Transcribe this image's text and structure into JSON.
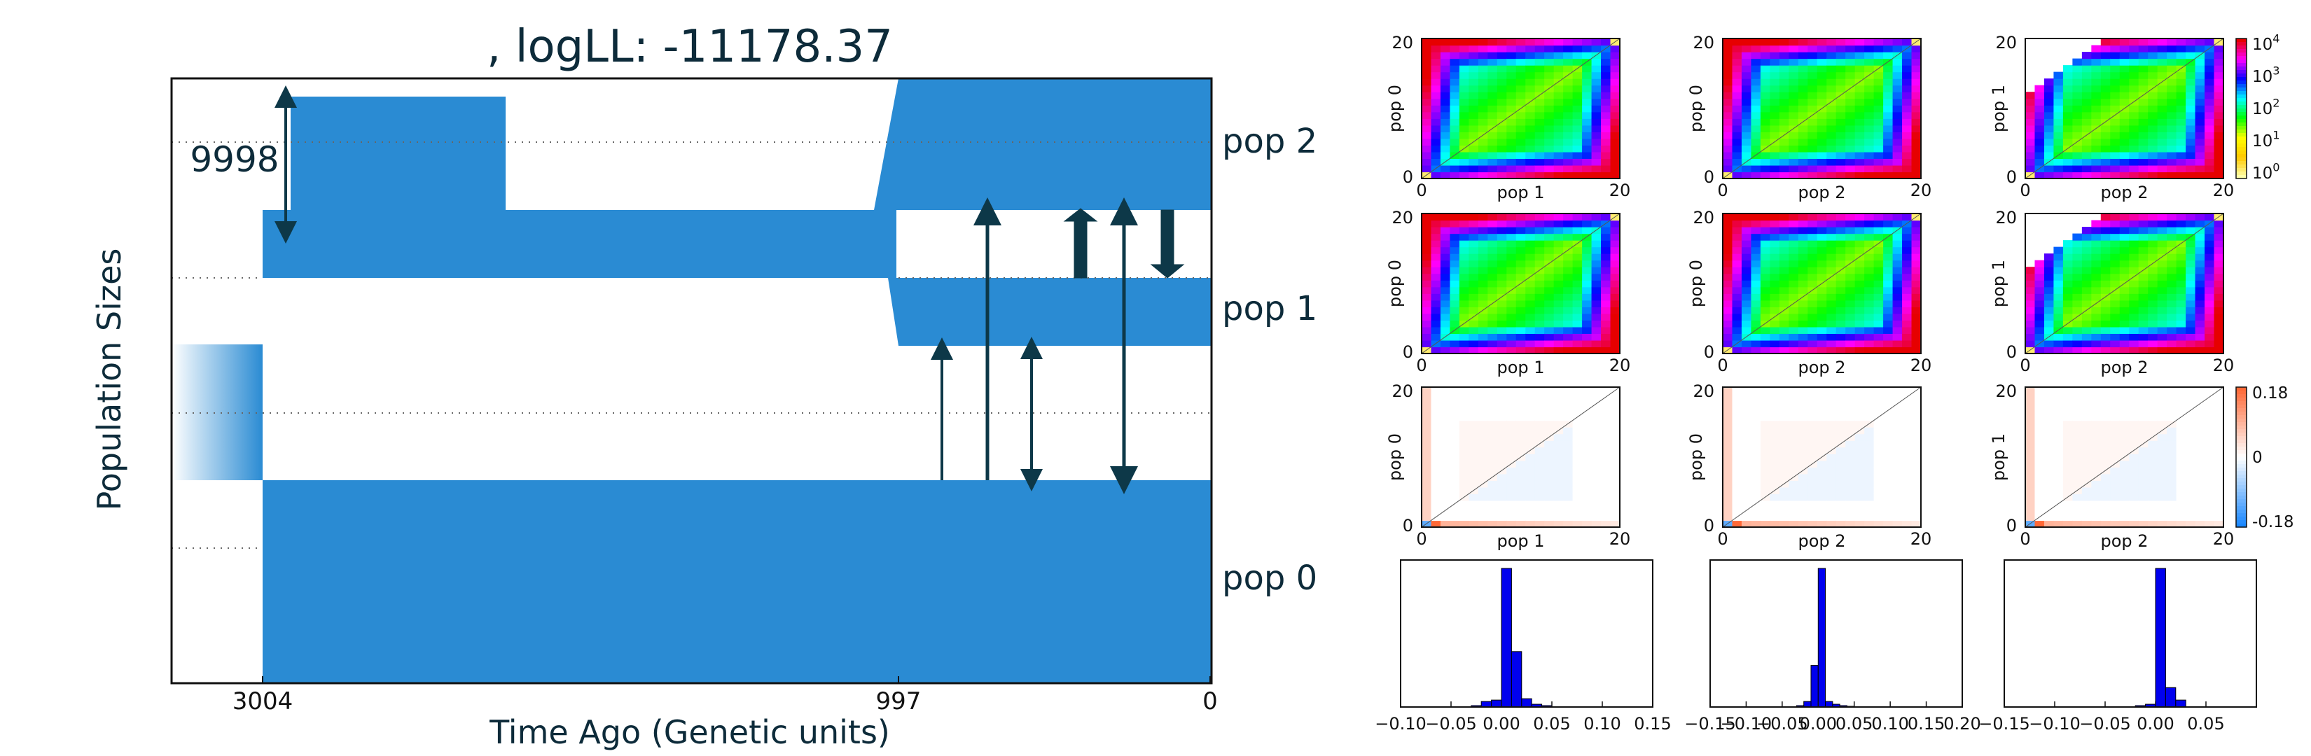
{
  "colors": {
    "pop": "#2a8bd3",
    "arrow": "#0d3848",
    "text": "#0d2b3a",
    "hist": "#0000ee",
    "grid": "#555555"
  },
  "demo": {
    "title": ", logLL:  -11178.37",
    "ylabel": "Population Sizes",
    "xlabel": "Time Ago (Genetic units)",
    "ticks": [
      "3004",
      "997",
      "0"
    ],
    "size_label": "9998",
    "pop_labels": [
      "pop 2",
      "pop 1",
      "pop 0"
    ]
  },
  "chart_data": [
    {
      "type": "heatmap",
      "panel": "sfs-data",
      "row": 1,
      "col": 1,
      "xlabel": "pop 1",
      "ylabel": "pop 0",
      "xticks": [
        "0",
        "20"
      ],
      "yticks": [
        "0",
        "20"
      ],
      "xlim": [
        0,
        20
      ],
      "ylim": [
        0,
        20
      ],
      "scale": "log",
      "cbar": false
    },
    {
      "type": "heatmap",
      "panel": "sfs-data",
      "row": 1,
      "col": 2,
      "xlabel": "pop 2",
      "ylabel": "pop 0",
      "xticks": [
        "0",
        "20"
      ],
      "yticks": [
        "0",
        "20"
      ],
      "xlim": [
        0,
        20
      ],
      "ylim": [
        0,
        20
      ],
      "scale": "log",
      "cbar": false
    },
    {
      "type": "heatmap",
      "panel": "sfs-data",
      "row": 1,
      "col": 3,
      "xlabel": "pop 2",
      "ylabel": "pop 1",
      "xticks": [
        "0",
        "20"
      ],
      "yticks": [
        "0",
        "20"
      ],
      "xlim": [
        0,
        20
      ],
      "ylim": [
        0,
        20
      ],
      "scale": "log",
      "cbar": true,
      "cbar_ticks": [
        "10^4",
        "10^3",
        "10^2",
        "10^1",
        "10^0"
      ]
    },
    {
      "type": "heatmap",
      "panel": "sfs-model",
      "row": 2,
      "col": 1,
      "xlabel": "pop 1",
      "ylabel": "pop 0",
      "xticks": [
        "0",
        "20"
      ],
      "yticks": [
        "0",
        "20"
      ],
      "xlim": [
        0,
        20
      ],
      "ylim": [
        0,
        20
      ],
      "scale": "log",
      "cbar": false
    },
    {
      "type": "heatmap",
      "panel": "sfs-model",
      "row": 2,
      "col": 2,
      "xlabel": "pop 2",
      "ylabel": "pop 0",
      "xticks": [
        "0",
        "20"
      ],
      "yticks": [
        "0",
        "20"
      ],
      "xlim": [
        0,
        20
      ],
      "ylim": [
        0,
        20
      ],
      "scale": "log",
      "cbar": false
    },
    {
      "type": "heatmap",
      "panel": "sfs-model",
      "row": 2,
      "col": 3,
      "xlabel": "pop 2",
      "ylabel": "pop 1",
      "xticks": [
        "0",
        "20"
      ],
      "yticks": [
        "0",
        "20"
      ],
      "xlim": [
        0,
        20
      ],
      "ylim": [
        0,
        20
      ],
      "scale": "log",
      "cbar": false
    },
    {
      "type": "heatmap",
      "panel": "residuals",
      "row": 3,
      "col": 1,
      "xlabel": "pop 1",
      "ylabel": "pop 0",
      "xticks": [
        "0",
        "20"
      ],
      "yticks": [
        "0",
        "20"
      ],
      "xlim": [
        0,
        20
      ],
      "ylim": [
        0,
        20
      ],
      "scale": "diverging",
      "cbar": false
    },
    {
      "type": "heatmap",
      "panel": "residuals",
      "row": 3,
      "col": 2,
      "xlabel": "pop 2",
      "ylabel": "pop 0",
      "xticks": [
        "0",
        "20"
      ],
      "yticks": [
        "0",
        "20"
      ],
      "xlim": [
        0,
        20
      ],
      "ylim": [
        0,
        20
      ],
      "scale": "diverging",
      "cbar": false
    },
    {
      "type": "heatmap",
      "panel": "residuals",
      "row": 3,
      "col": 3,
      "xlabel": "pop 2",
      "ylabel": "pop 1",
      "xticks": [
        "0",
        "20"
      ],
      "yticks": [
        "0",
        "20"
      ],
      "xlim": [
        0,
        20
      ],
      "ylim": [
        0,
        20
      ],
      "scale": "diverging",
      "cbar": true,
      "cbar_ticks": [
        "0.18",
        "0",
        "-0.18"
      ],
      "cbar_range": [
        -0.18,
        0.18
      ]
    },
    {
      "type": "bar",
      "panel": "residual-histogram",
      "row": 4,
      "col": 1,
      "xticks": [
        "−0.10",
        "−0.05",
        "0.00",
        "0.05",
        "0.10",
        "0.15"
      ],
      "xlim": [
        -0.1,
        0.15
      ],
      "bins": [
        -0.03,
        -0.02,
        -0.01,
        0.0,
        0.01,
        0.02,
        0.03,
        0.04
      ],
      "values": [
        0.01,
        0.04,
        0.05,
        1.0,
        0.4,
        0.06,
        0.02,
        0.01
      ]
    },
    {
      "type": "bar",
      "panel": "residual-histogram",
      "row": 4,
      "col": 2,
      "xticks": [
        "−0.15",
        "−0.10",
        "−0.05",
        "0.00",
        "0.05",
        "0.10",
        "0.15",
        "0.20"
      ],
      "xlim": [
        -0.15,
        0.2
      ],
      "bins": [
        -0.03,
        -0.02,
        -0.01,
        0.0,
        0.01,
        0.02,
        0.03,
        0.04
      ],
      "values": [
        0.01,
        0.04,
        0.3,
        1.0,
        0.04,
        0.02,
        0.01,
        0.005
      ]
    },
    {
      "type": "bar",
      "panel": "residual-histogram",
      "row": 4,
      "col": 3,
      "xticks": [
        "−0.15",
        "−0.10",
        "−0.05",
        "0.00",
        "0.05"
      ],
      "xlim": [
        -0.15,
        0.1
      ],
      "bins": [
        -0.02,
        -0.01,
        0.0,
        0.01,
        0.02
      ],
      "values": [
        0.01,
        0.02,
        1.0,
        0.14,
        0.05
      ]
    }
  ]
}
